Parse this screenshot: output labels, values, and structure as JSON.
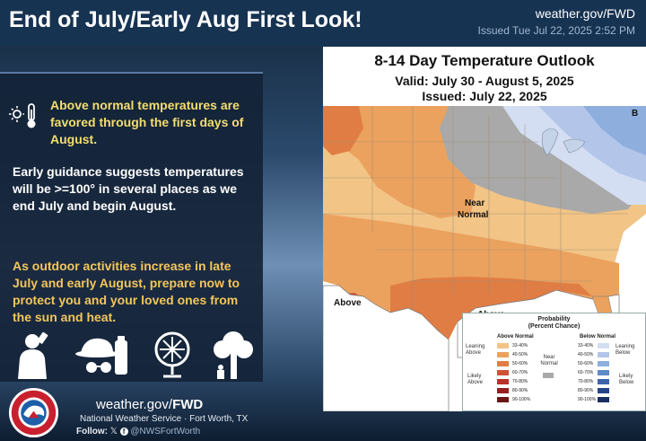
{
  "header": {
    "title": "End of July/Early Aug First Look!",
    "site": "weather.gov/FWD",
    "issued": "Issued Tue Jul 22, 2025 2:52 PM"
  },
  "left_panel": {
    "highlight": "Above normal temperatures are favored through the first days of August.",
    "paragraph_2": "Early guidance suggests temperatures will be >=100° in several places as we end July and begin August.",
    "paragraph_3": "As outdoor activities increase in late July and early August, prepare now to protect you and your loved ones from the sun and heat.",
    "icons": [
      "thermometer-sun-icon",
      "person-drinking-icon",
      "hat-sunglasses-sunscreen-icon",
      "fan-icon",
      "tree-shade-icon"
    ]
  },
  "map": {
    "title": "8-14 Day Temperature Outlook",
    "valid": "Valid: July 30 - August 5, 2025",
    "issued": "Issued: July 22, 2025",
    "labels": {
      "near_normal_1": "Near",
      "near_normal_2": "Normal",
      "above_west": "Above",
      "above_south": "Above",
      "corner_b": "B"
    }
  },
  "legend": {
    "title_1": "Probability",
    "title_2": "(Percent Chance)",
    "above_head": "Above Normal",
    "below_head": "Below Normal",
    "near_1": "Near",
    "near_2": "Normal",
    "above_rows": [
      "33-40%",
      "40-50%",
      "50-60%",
      "60-70%",
      "70-80%",
      "80-90%",
      "90-100%"
    ],
    "below_rows": [
      "33-40%",
      "40-50%",
      "50-60%",
      "60-70%",
      "70-80%",
      "80-90%",
      "90-100%"
    ],
    "above_colors": [
      "#f2c486",
      "#eba25e",
      "#e07d45",
      "#d05235",
      "#b83228",
      "#962020",
      "#6b1616"
    ],
    "below_colors": [
      "#d4def2",
      "#b3c6ea",
      "#8eaede",
      "#5f88c8",
      "#3b64ad",
      "#26448a",
      "#1b2e63"
    ],
    "near_color": "#a9a9a9",
    "leaning_above_1": "Leaning",
    "leaning_above_2": "Above",
    "likely_above_1": "Likely",
    "likely_above_2": "Above",
    "leaning_below_1": "Leaning",
    "leaning_below_2": "Below",
    "likely_below_1": "Likely",
    "likely_below_2": "Below"
  },
  "footer": {
    "url_plain": "weather.gov/",
    "url_bold": "FWD",
    "office": "National Weather Service · Fort Worth, TX",
    "follow_label": "Follow:",
    "handle": "@NWSFortWorth",
    "logo_text": "NATIONAL WEATHER SERVICE"
  }
}
